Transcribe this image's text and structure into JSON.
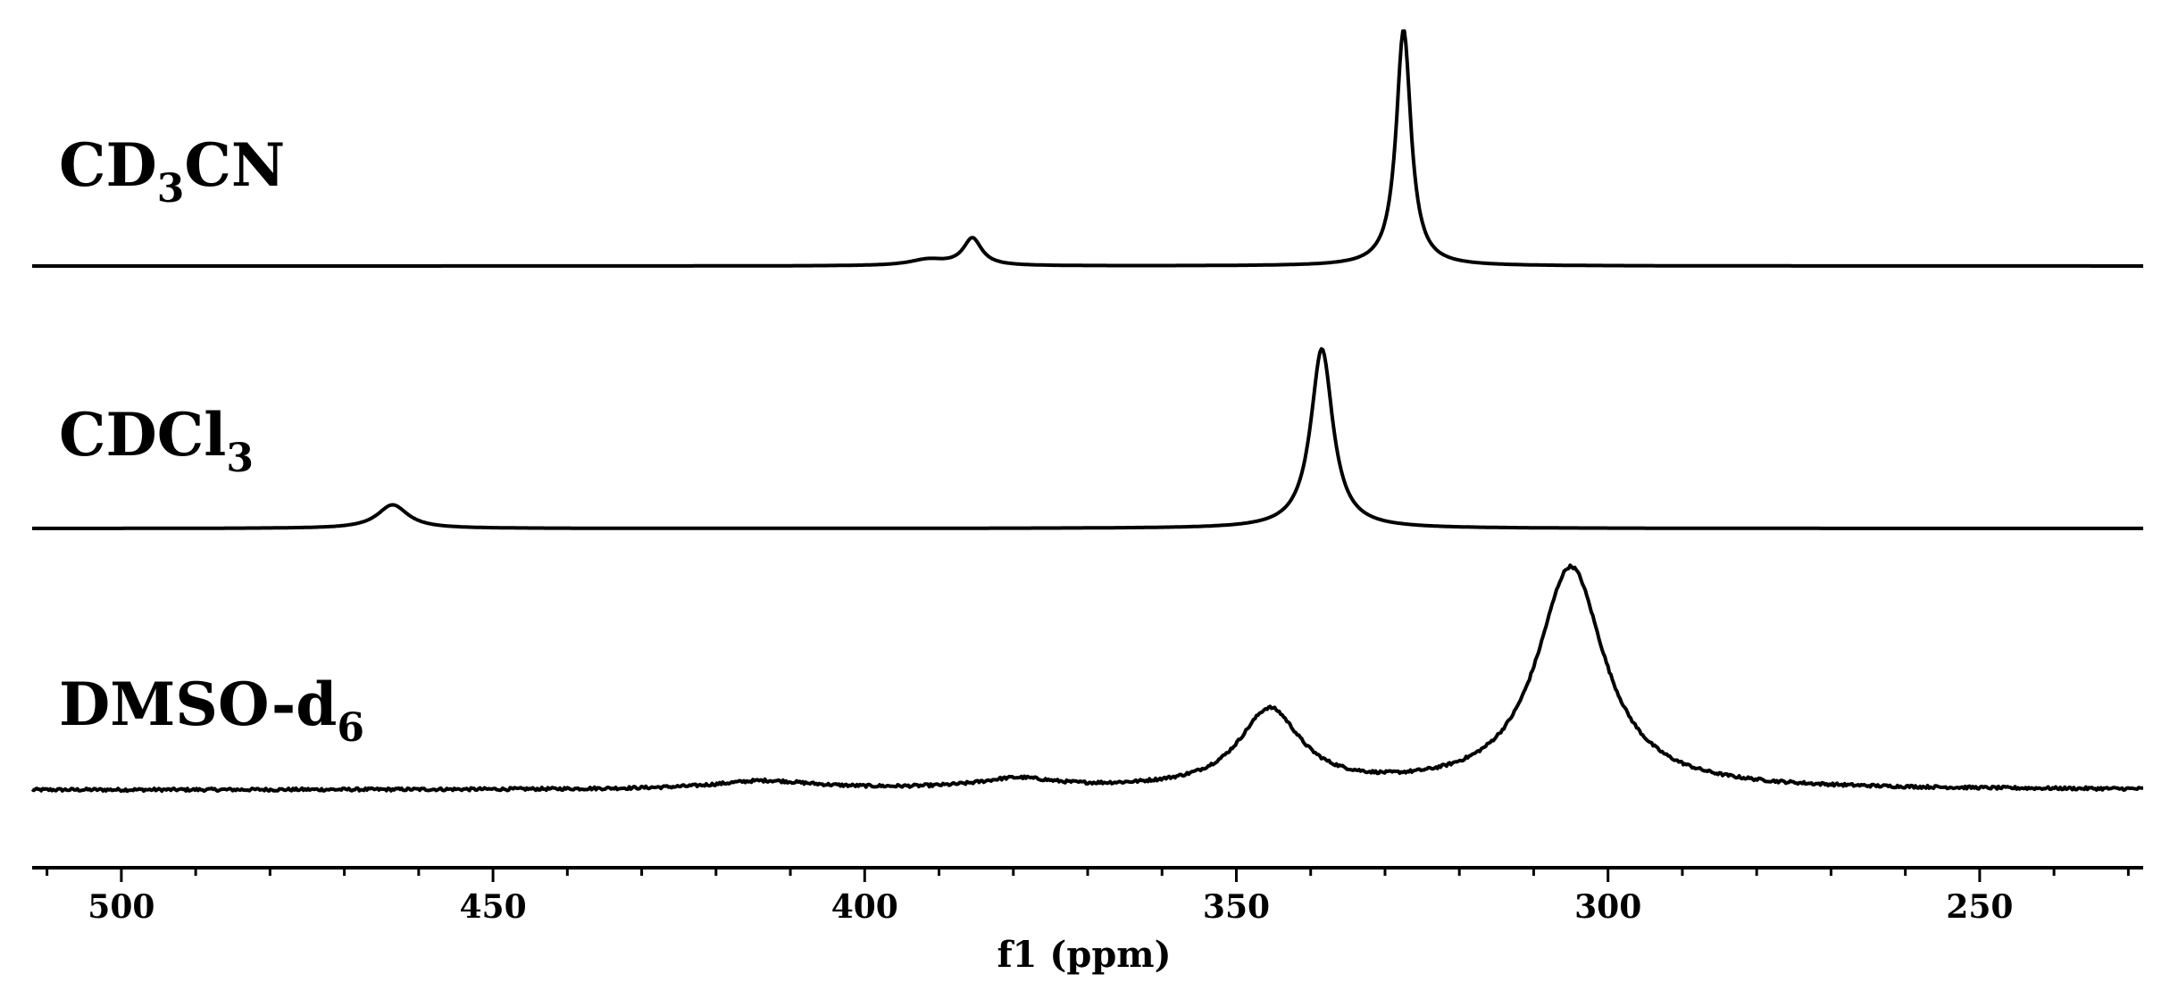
{
  "chart_data": {
    "type": "line",
    "xlabel": "f1 (ppm)",
    "ylabel": "",
    "xlim": [
      512,
      228
    ],
    "x_reversed": true,
    "grid": false,
    "x_ticks": [
      {
        "value": 500,
        "label": "500"
      },
      {
        "value": 450,
        "label": "450"
      },
      {
        "value": 400,
        "label": "400"
      },
      {
        "value": 350,
        "label": "350"
      },
      {
        "value": 300,
        "label": "300"
      },
      {
        "value": 250,
        "label": "250"
      }
    ],
    "x_minor_step": 10,
    "series": [
      {
        "name": "CD₃CN",
        "label_main": "CD",
        "label_sub": "3",
        "label_tail": "CN",
        "baseline_offset": 0,
        "noise": 0,
        "peaks": [
          {
            "x": 327.5,
            "height": 1.0,
            "width": 1.2
          },
          {
            "x": 385.5,
            "height": 0.115,
            "width": 1.5
          },
          {
            "x": 391.5,
            "height": 0.025,
            "width": 3.0
          }
        ]
      },
      {
        "name": "CDCl₃",
        "label_main": "CDCl",
        "label_sub": "3",
        "label_tail": "",
        "baseline_offset": 0,
        "noise": 0,
        "peaks": [
          {
            "x": 338.5,
            "height": 0.76,
            "width": 1.8
          },
          {
            "x": 463.5,
            "height": 0.1,
            "width": 2.5
          }
        ]
      },
      {
        "name": "DMSO-d₆",
        "label_main": "DMSO-d",
        "label_sub": "6",
        "label_tail": "",
        "baseline_offset": 0,
        "noise": 0.006,
        "peaks": [
          {
            "x": 305,
            "height": 0.94,
            "width": 5.5
          },
          {
            "x": 345.5,
            "height": 0.33,
            "width": 5.0
          },
          {
            "x": 379.5,
            "height": 0.04,
            "width": 6.0
          },
          {
            "x": 413.5,
            "height": 0.035,
            "width": 8.0
          }
        ]
      }
    ]
  }
}
